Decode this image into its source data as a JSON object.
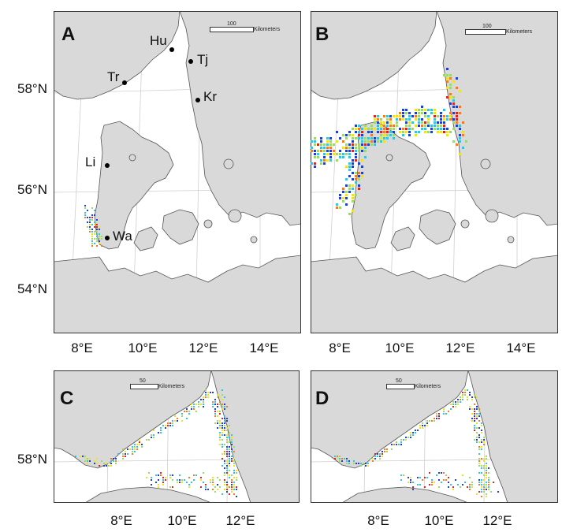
{
  "panels": [
    {
      "letter": "A",
      "scale": {
        "value": "100",
        "unit": "Kilometers"
      }
    },
    {
      "letter": "B",
      "scale": {
        "value": "100",
        "unit": "Kilometers"
      }
    },
    {
      "letter": "C",
      "scale": {
        "value": "50",
        "unit": "Kilometers"
      }
    },
    {
      "letter": "D",
      "scale": {
        "value": "50",
        "unit": "Kilometers"
      }
    }
  ],
  "sites": [
    {
      "code": "Hu"
    },
    {
      "code": "Tj"
    },
    {
      "code": "Tr"
    },
    {
      "code": "Kr"
    },
    {
      "code": "Li"
    },
    {
      "code": "Wa"
    }
  ],
  "lat_labels_top": [
    "58°N",
    "56°N",
    "54°N"
  ],
  "lon_labels_top": [
    "8°E",
    "10°E",
    "12°E",
    "14°E"
  ],
  "lat_labels_bottom": [
    "58°N"
  ],
  "lon_labels_bottom": [
    "8°E",
    "10°E",
    "12°E"
  ],
  "colors": {
    "land": "#d9d9d9",
    "sea": "#ffffff",
    "outline": "#555555",
    "density_low": "#1f3fd1",
    "density_mid": "#33c4e0",
    "density_high": "#f2e21a",
    "density_peak": "#e2231a"
  }
}
